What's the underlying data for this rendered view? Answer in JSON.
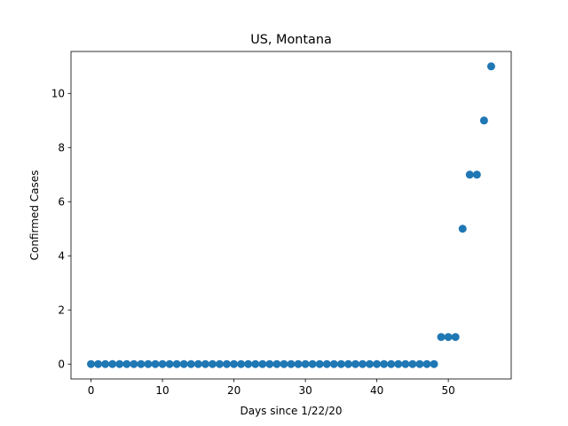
{
  "chart_data": {
    "type": "scatter",
    "title": "US, Montana",
    "xlabel": "Days since 1/22/20",
    "ylabel": "Confirmed Cases",
    "xlim": [
      -2.8,
      58.8
    ],
    "ylim": [
      -0.55,
      11.55
    ],
    "xticks": [
      0,
      10,
      20,
      30,
      40,
      50
    ],
    "yticks": [
      0,
      2,
      4,
      6,
      8,
      10
    ],
    "grid": false,
    "color": "#1f77b4",
    "x": [
      0,
      1,
      2,
      3,
      4,
      5,
      6,
      7,
      8,
      9,
      10,
      11,
      12,
      13,
      14,
      15,
      16,
      17,
      18,
      19,
      20,
      21,
      22,
      23,
      24,
      25,
      26,
      27,
      28,
      29,
      30,
      31,
      32,
      33,
      34,
      35,
      36,
      37,
      38,
      39,
      40,
      41,
      42,
      43,
      44,
      45,
      46,
      47,
      48,
      49,
      50,
      51,
      52,
      53,
      54,
      55,
      56
    ],
    "y": [
      0,
      0,
      0,
      0,
      0,
      0,
      0,
      0,
      0,
      0,
      0,
      0,
      0,
      0,
      0,
      0,
      0,
      0,
      0,
      0,
      0,
      0,
      0,
      0,
      0,
      0,
      0,
      0,
      0,
      0,
      0,
      0,
      0,
      0,
      0,
      0,
      0,
      0,
      0,
      0,
      0,
      0,
      0,
      0,
      0,
      0,
      0,
      0,
      0,
      1,
      1,
      1,
      5,
      7,
      7,
      9,
      11
    ]
  }
}
